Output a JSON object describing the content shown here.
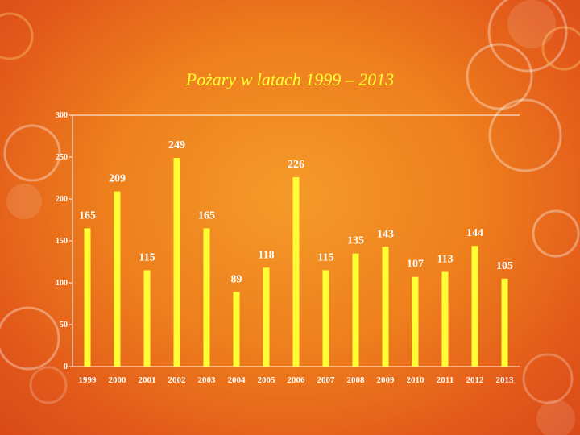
{
  "slide": {
    "background": "#ee7f1d",
    "accent": "#ffff33",
    "bar_color": "#ffff33"
  },
  "chart_data": {
    "type": "bar",
    "title": "Pożary w latach 1999 – 2013",
    "categories": [
      "1999",
      "2000",
      "2001",
      "2002",
      "2003",
      "2004",
      "2005",
      "2006",
      "2007",
      "2008",
      "2009",
      "2010",
      "2011",
      "2012",
      "2013"
    ],
    "values": [
      165,
      209,
      115,
      249,
      165,
      89,
      118,
      226,
      115,
      135,
      143,
      107,
      113,
      144,
      105
    ],
    "ylim": [
      0,
      300
    ],
    "yticks": [
      0,
      50,
      100,
      150,
      200,
      250,
      300
    ],
    "xlabel": "",
    "ylabel": "",
    "grid": false,
    "legend": "none"
  }
}
